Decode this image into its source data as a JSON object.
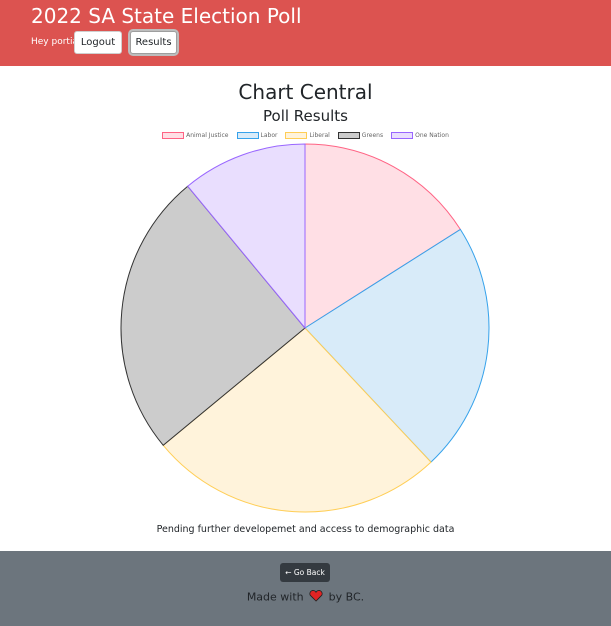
{
  "header": {
    "title": "2022 SA State Election Poll",
    "greeting": "Hey portia!",
    "logout_label": "Logout",
    "results_label": "Results",
    "background": "#dc5350"
  },
  "main": {
    "heading": "Chart Central",
    "subheading": "Poll Results",
    "note": "Pending further developemet and access to demographic data"
  },
  "chart_data": {
    "type": "pie",
    "title": "",
    "categories": [
      "Animal Justice",
      "Labor",
      "Liberal",
      "Greens",
      "One Nation"
    ],
    "values": [
      16,
      22,
      26,
      25,
      11
    ],
    "legend_position": "top",
    "colors": {
      "fill": [
        "#ffdfe5",
        "#d8ebf9",
        "#fff3db",
        "#cccccc",
        "#e9defe"
      ],
      "stroke": [
        "#ff6384",
        "#36a2eb",
        "#ffce56",
        "#333333",
        "#9966ff"
      ]
    }
  },
  "footer": {
    "back_label": "← Go Back",
    "made_with_prefix": "Made with",
    "made_with_suffix": "by BC.",
    "heart_icon": "heart-icon"
  }
}
